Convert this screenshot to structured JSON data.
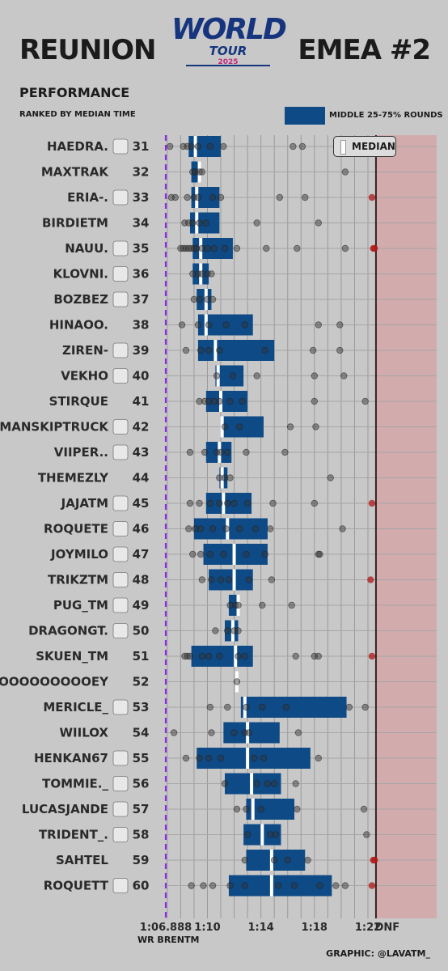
{
  "header": {
    "title_left": "REUNION",
    "title_right": "EMEA #2",
    "logo_line1": "WORLD",
    "logo_line2": "TOUR",
    "logo_year": "2025",
    "subtitle": "PERFORMANCE",
    "ranking_note": "RANKED BY MEDIAN TIME",
    "legend_iqr": "MIDDLE 25-75% ROUNDS",
    "legend_median": "MEDIAN",
    "wr_label": "WR BRENTM",
    "credit": "GRAPHIC: @LAVATM_"
  },
  "colors": {
    "background": "#c8c8c8",
    "box": "#0e4a86",
    "median": "#ffffff",
    "wr_line": "#8a2be2",
    "dnf_zone": "#d4a6a8",
    "dnf_line": "#3a2020",
    "dot": "#333333",
    "dnf_dot": "#b01818"
  },
  "chart_data": {
    "type": "box",
    "x_axis": {
      "ticks": [
        {
          "value": 66.888,
          "label": "1:06.888"
        },
        {
          "value": 70,
          "label": "1:10"
        },
        {
          "value": 74,
          "label": "1:14"
        },
        {
          "value": 78,
          "label": "1:18"
        },
        {
          "value": 82,
          "label": "1:22"
        },
        {
          "value": 82.6,
          "label": "DNF"
        }
      ],
      "wr_value": 66.888,
      "dnf_value": 82.6,
      "xlim": [
        66.0,
        84.0
      ]
    },
    "players": [
      {
        "name": "HAEDRA.",
        "number": 31,
        "icon": "chanel-logo-icon",
        "q1": 68.6,
        "median": 69.1,
        "q3": 71.0,
        "points": [
          67.2,
          68.2,
          68.5,
          68.8,
          69.3,
          70.2,
          71.2,
          76.4,
          77.1
        ]
      },
      {
        "name": "MAXTRAK",
        "number": 32,
        "icon": "",
        "q1": 68.8,
        "median": 69.4,
        "q3": 69.4,
        "points": [
          68.9,
          69.1,
          69.4,
          69.6,
          80.3
        ]
      },
      {
        "name": "ERIA-.",
        "number": 33,
        "icon": "diamond-logo-icon",
        "q1": 68.8,
        "median": 69.2,
        "q3": 70.9,
        "points": [
          67.3,
          67.6,
          68.5,
          69.0,
          69.3,
          70.4,
          71.0,
          75.4,
          77.3,
          82.3
        ]
      },
      {
        "name": "BIRDIETM",
        "number": 34,
        "icon": "",
        "q1": 68.7,
        "median": 69.2,
        "q3": 70.9,
        "points": [
          68.3,
          68.6,
          68.9,
          69.4,
          69.9,
          73.7,
          78.3
        ]
      },
      {
        "name": "NAUU.",
        "number": 35,
        "icon": "lion-logo-icon",
        "q1": 68.9,
        "median": 69.5,
        "q3": 71.9,
        "points": [
          68.0,
          68.2,
          68.4,
          68.6,
          68.8,
          69.0,
          69.2,
          69.6,
          70.0,
          70.5,
          71.3,
          72.2,
          74.4,
          76.7,
          80.3,
          82.4,
          82.5
        ]
      },
      {
        "name": "KLOVNI.",
        "number": 36,
        "icon": "spiral-logo-icon",
        "q1": 68.9,
        "median": 69.5,
        "q3": 70.1,
        "points": [
          68.9,
          69.3,
          69.6,
          70.0,
          70.3
        ]
      },
      {
        "name": "BOZBEZ",
        "number": 37,
        "icon": "banner-logo-icon",
        "q1": 69.2,
        "median": 69.9,
        "q3": 70.3,
        "points": [
          69.0,
          69.4,
          70.0,
          70.4
        ]
      },
      {
        "name": "HINAOO.",
        "number": 38,
        "icon": "",
        "q1": 69.3,
        "median": 69.9,
        "q3": 73.4,
        "points": [
          68.1,
          69.3,
          70.1,
          71.4,
          72.8,
          78.3,
          79.9
        ]
      },
      {
        "name": "ZIREN-",
        "number": 39,
        "icon": "s-logo-icon",
        "q1": 69.3,
        "median": 70.6,
        "q3": 75.0,
        "points": [
          68.4,
          69.5,
          70.1,
          70.9,
          74.3,
          77.9,
          79.9
        ]
      },
      {
        "name": "VEKHO",
        "number": 40,
        "icon": "pink-orb-logo-icon",
        "q1": 70.6,
        "median": 70.8,
        "q3": 72.7,
        "points": [
          70.7,
          71.9,
          73.7,
          78.0,
          80.2
        ]
      },
      {
        "name": "STIRQUE",
        "number": 41,
        "icon": "",
        "q1": 69.9,
        "median": 71.0,
        "q3": 73.0,
        "points": [
          69.4,
          69.8,
          70.1,
          70.5,
          70.9,
          71.7,
          72.6,
          78.0,
          81.8
        ]
      },
      {
        "name": "MANSKIPTRUCK",
        "number": 42,
        "icon": "green-bolt-logo-icon",
        "q1": 71.1,
        "median": 71.1,
        "q3": 74.2,
        "points": [
          71.3,
          72.4,
          76.2,
          78.1
        ]
      },
      {
        "name": "VIIPER..",
        "number": 43,
        "icon": "ring-logo-icon",
        "q1": 69.9,
        "median": 70.9,
        "q3": 71.8,
        "points": [
          68.7,
          69.8,
          70.7,
          71.0,
          71.5,
          72.9,
          75.8
        ]
      },
      {
        "name": "THEMEZLY",
        "number": 44,
        "icon": "",
        "q1": 70.9,
        "median": 71.1,
        "q3": 71.5,
        "points": [
          70.9,
          71.3,
          71.7,
          79.2
        ]
      },
      {
        "name": "JAJATM",
        "number": 45,
        "icon": "diamond-logo-icon",
        "q1": 69.9,
        "median": 71.2,
        "q3": 73.3,
        "points": [
          68.7,
          69.4,
          70.2,
          70.9,
          71.5,
          72.0,
          73.0,
          74.9,
          78.0,
          82.3
        ]
      },
      {
        "name": "ROQUETE",
        "number": 46,
        "icon": "knight-logo-icon",
        "q1": 69.0,
        "median": 71.5,
        "q3": 74.5,
        "points": [
          68.6,
          69.1,
          69.5,
          70.4,
          71.4,
          72.4,
          73.6,
          74.7,
          80.1
        ]
      },
      {
        "name": "JOYMILO",
        "number": 47,
        "icon": "orange-logo-icon",
        "q1": 69.7,
        "median": 72.0,
        "q3": 74.5,
        "points": [
          68.9,
          69.5,
          70.2,
          71.2,
          72.9,
          74.3,
          78.3,
          78.4
        ]
      },
      {
        "name": "TRIKZTM",
        "number": 48,
        "icon": "teal-moon-logo-icon",
        "q1": 70.1,
        "median": 72.0,
        "q3": 73.4,
        "points": [
          69.6,
          70.3,
          71.0,
          71.6,
          73.1,
          74.8,
          82.2
        ]
      },
      {
        "name": "PUG_TM",
        "number": 49,
        "icon": "plane-logo-icon",
        "q1": 71.6,
        "median": 72.3,
        "q3": 72.4,
        "points": [
          71.7,
          72.1,
          72.3,
          74.1,
          76.3
        ]
      },
      {
        "name": "DRAGONGT.",
        "number": 50,
        "icon": "purple-symbol-logo-icon",
        "q1": 71.3,
        "median": 71.9,
        "q3": 72.3,
        "points": [
          70.6,
          71.5,
          72.0,
          72.3
        ]
      },
      {
        "name": "SKUEN_TM",
        "number": 51,
        "icon": "",
        "q1": 68.8,
        "median": 72.1,
        "q3": 73.4,
        "points": [
          68.3,
          68.5,
          68.7,
          69.6,
          70.1,
          70.9,
          72.3,
          72.8,
          76.6,
          78.0,
          78.3,
          82.3
        ]
      },
      {
        "name": "JOOOOOOOOOEY",
        "number": 52,
        "icon": "",
        "q1": 72.2,
        "median": 72.2,
        "q3": 72.2,
        "points": [
          72.2
        ]
      },
      {
        "name": "MERICLE_",
        "number": 53,
        "icon": "green-bolt-logo-icon",
        "q1": 72.5,
        "median": 72.8,
        "q3": 80.4,
        "points": [
          70.2,
          71.5,
          72.9,
          74.1,
          75.9,
          80.6,
          81.8
        ]
      },
      {
        "name": "WIILOX",
        "number": 54,
        "icon": "",
        "q1": 71.2,
        "median": 73.0,
        "q3": 75.4,
        "points": [
          67.5,
          70.3,
          72.0,
          72.8,
          73.1,
          76.8
        ]
      },
      {
        "name": "HENKAN67",
        "number": 55,
        "icon": "red-lattice-logo-icon",
        "q1": 69.2,
        "median": 73.0,
        "q3": 77.7,
        "points": [
          68.4,
          69.4,
          70.1,
          71.0,
          73.5,
          74.2,
          78.3
        ]
      },
      {
        "name": "TOMMIE._",
        "number": 56,
        "icon": "plane-logo-icon",
        "q1": 71.3,
        "median": 73.3,
        "q3": 75.5,
        "points": [
          71.3,
          73.7,
          74.5,
          75.0,
          76.6
        ]
      },
      {
        "name": "LUCASJANDE",
        "number": 57,
        "icon": "camo-logo-icon",
        "q1": 72.9,
        "median": 73.4,
        "q3": 76.5,
        "points": [
          72.2,
          72.9,
          74.0,
          76.7,
          81.7
        ]
      },
      {
        "name": "TRIDENT_.",
        "number": 58,
        "icon": "wave-logo-icon",
        "q1": 72.7,
        "median": 74.1,
        "q3": 75.5,
        "points": [
          73.0,
          74.7,
          75.1,
          81.9
        ]
      },
      {
        "name": "SAHTEL",
        "number": 59,
        "icon": "",
        "q1": 72.9,
        "median": 74.8,
        "q3": 77.3,
        "points": [
          72.8,
          75.0,
          76.0,
          77.5,
          82.4,
          82.5
        ]
      },
      {
        "name": "ROQUETT",
        "number": 60,
        "icon": "knight-logo-icon",
        "q1": 71.6,
        "median": 74.8,
        "q3": 79.3,
        "points": [
          68.8,
          69.7,
          70.4,
          71.7,
          72.8,
          75.3,
          76.5,
          78.4,
          79.6,
          80.3,
          82.3
        ]
      }
    ]
  }
}
